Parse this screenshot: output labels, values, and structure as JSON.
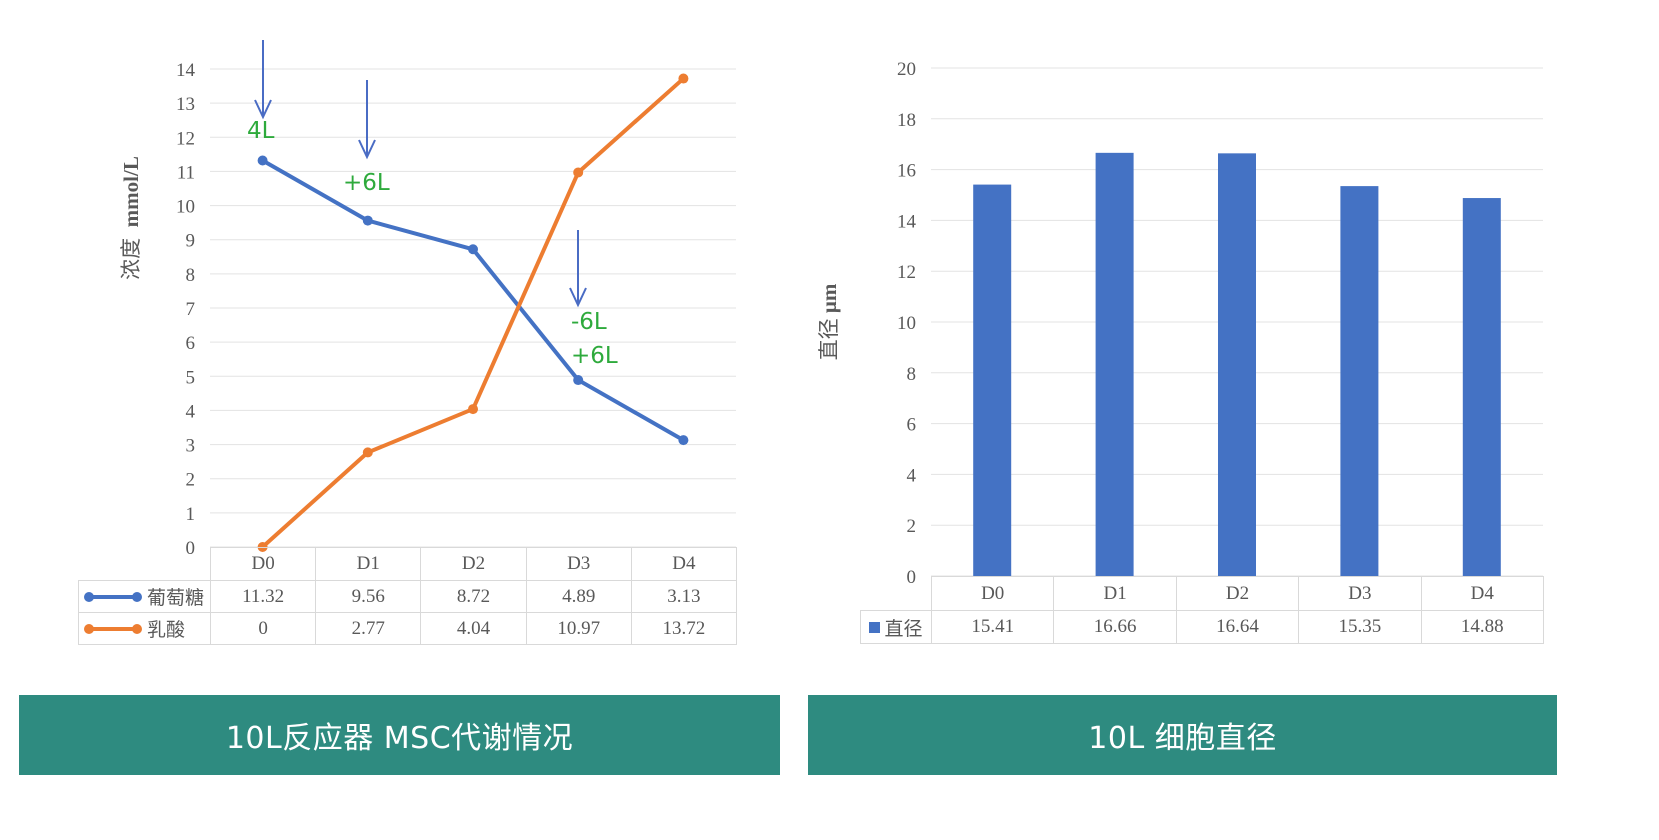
{
  "panels": [
    {
      "banner": "10L反应器 MSC代谢情况",
      "y_axis_label": "浓度 mmol/L",
      "y_axis_label_cn": "浓度",
      "y_axis_label_unit": "mmol/L",
      "annotations": [
        {
          "label": "4L",
          "day": "D0"
        },
        {
          "label": "+6L",
          "day": "D1"
        },
        {
          "label": "-6L",
          "day": "D3"
        },
        {
          "label": "+6L",
          "day": "D3"
        }
      ]
    },
    {
      "banner": "10L 细胞直径",
      "y_axis_label": "直径 μm",
      "y_axis_label_cn": "直径",
      "y_axis_label_unit": "μm"
    }
  ],
  "table1": {
    "headers": [
      "D0",
      "D1",
      "D2",
      "D3",
      "D4"
    ],
    "rows": [
      {
        "name": "葡萄糖",
        "values": [
          "11.32",
          "9.56",
          "8.72",
          "4.89",
          "3.13"
        ]
      },
      {
        "name": "乳酸",
        "values": [
          "0",
          "2.77",
          "4.04",
          "10.97",
          "13.72"
        ]
      }
    ]
  },
  "table2": {
    "headers": [
      "D0",
      "D1",
      "D2",
      "D3",
      "D4"
    ],
    "rows": [
      {
        "name": "直径",
        "values": [
          "15.41",
          "16.66",
          "16.64",
          "15.35",
          "14.88"
        ]
      }
    ]
  },
  "colors": {
    "glucose": "#4472c4",
    "lactate": "#ed7d31",
    "bar": "#4472c4",
    "annotation": "#2eaa3c",
    "arrow": "#4a6cc4",
    "banner": "#2e8b80"
  },
  "chart_data": [
    {
      "type": "line",
      "title": "10L反应器 MSC代谢情况",
      "categories": [
        "D0",
        "D1",
        "D2",
        "D3",
        "D4"
      ],
      "series": [
        {
          "name": "葡萄糖",
          "values": [
            11.32,
            9.56,
            8.72,
            4.89,
            3.13
          ]
        },
        {
          "name": "乳酸",
          "values": [
            0,
            2.77,
            4.04,
            10.97,
            13.72
          ]
        }
      ],
      "xlabel": "",
      "ylabel": "浓度 mmol/L",
      "ylim": [
        0,
        14
      ],
      "yticks": [
        0,
        1,
        2,
        3,
        4,
        5,
        6,
        7,
        8,
        9,
        10,
        11,
        12,
        13,
        14
      ],
      "grid": true,
      "legend": "data table below chart",
      "annotations": [
        {
          "text": "4L",
          "x": "D0",
          "arrow": true
        },
        {
          "text": "+6L",
          "x": "D1",
          "arrow": true
        },
        {
          "text": "-6L",
          "x": "D3",
          "arrow": true
        },
        {
          "text": "+6L",
          "x": "D3"
        }
      ]
    },
    {
      "type": "bar",
      "title": "10L 细胞直径",
      "categories": [
        "D0",
        "D1",
        "D2",
        "D3",
        "D4"
      ],
      "series": [
        {
          "name": "直径",
          "values": [
            15.41,
            16.66,
            16.64,
            15.35,
            14.88
          ]
        }
      ],
      "xlabel": "",
      "ylabel": "直径 μm",
      "ylim": [
        0,
        20
      ],
      "yticks": [
        0,
        2,
        4,
        6,
        8,
        10,
        12,
        14,
        16,
        18,
        20
      ],
      "grid": true,
      "legend": "data table below chart"
    }
  ]
}
